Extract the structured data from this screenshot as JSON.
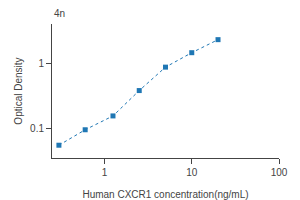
{
  "chart_data": {
    "type": "line",
    "x": [
      0.3,
      0.6,
      1.25,
      2.5,
      5,
      10,
      20
    ],
    "series": [
      {
        "values": [
          0.055,
          0.095,
          0.155,
          0.38,
          0.87,
          1.45,
          2.3
        ],
        "marker": "square",
        "line_style": "dotted"
      }
    ],
    "xlabel": "Human CXCR1 concentration(ng/mL)",
    "ylabel": "Optical Density",
    "xlim": [
      0.25,
      100
    ],
    "ylim": [
      0.035,
      4.0
    ],
    "xticks": [
      1,
      10,
      100
    ],
    "yticks": [
      0.1,
      1
    ],
    "log": true,
    "grid": false,
    "annotations": [
      "4n"
    ]
  }
}
